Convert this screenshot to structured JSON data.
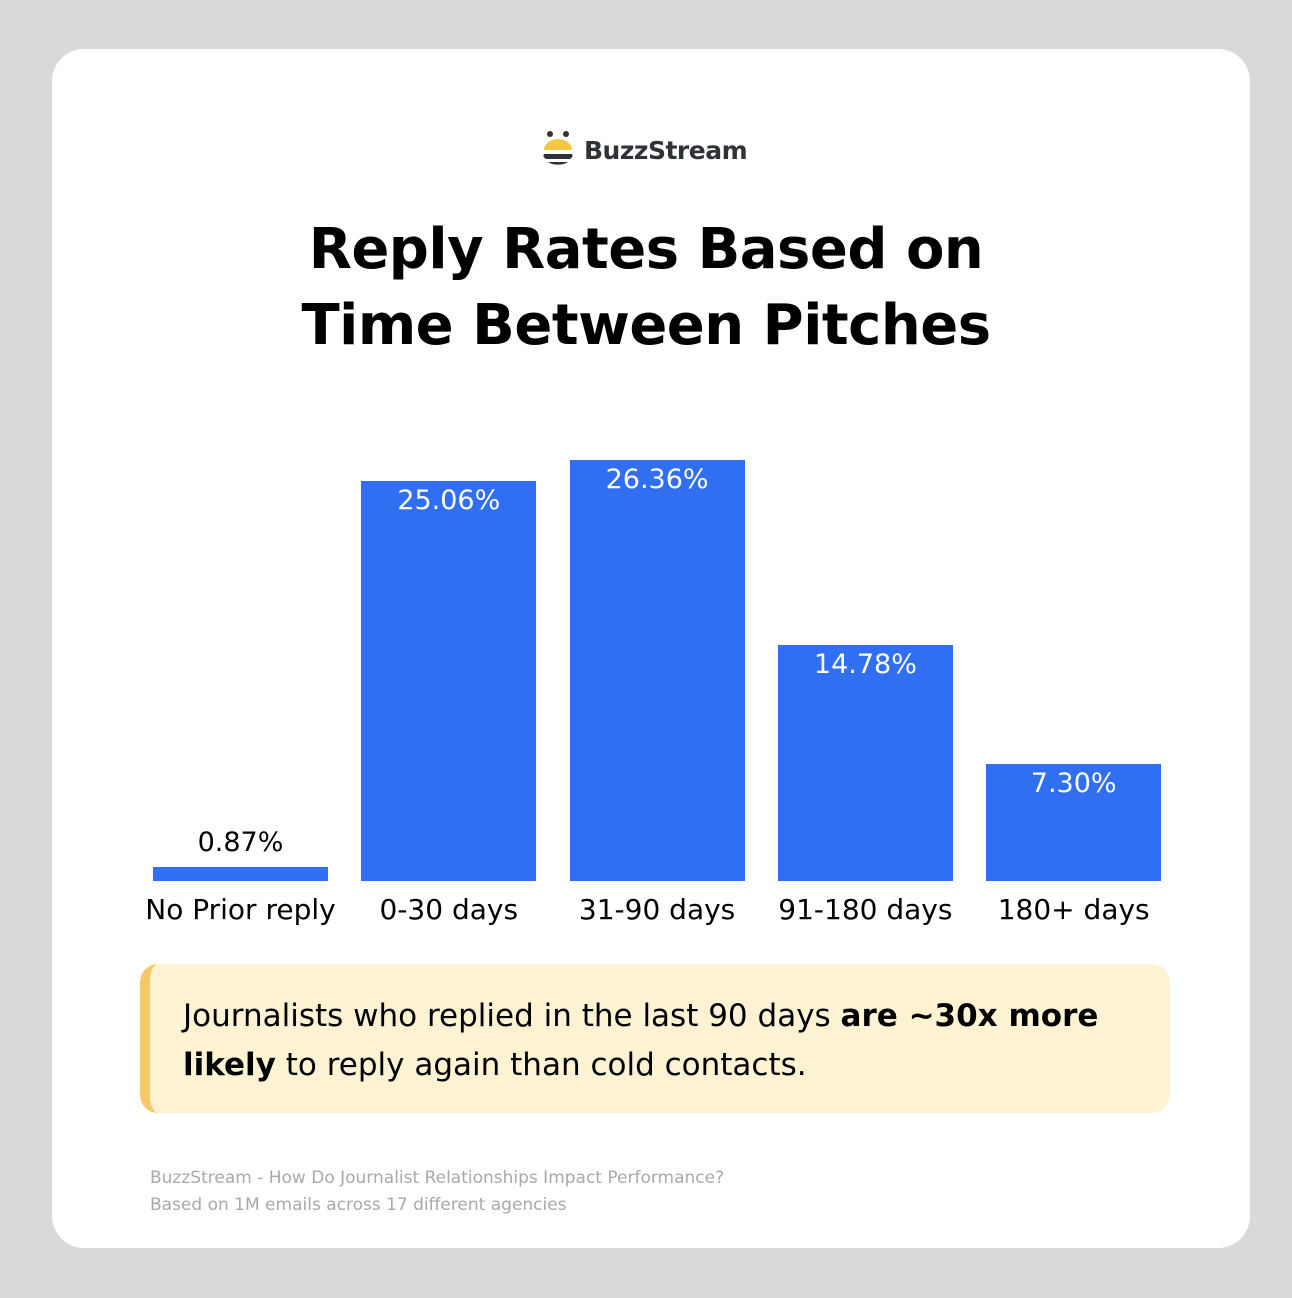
{
  "brand": {
    "name": "BuzzStream",
    "accent": "#306ff2",
    "logo_yellow": "#f5c843"
  },
  "title_lines": [
    "Reply Rates Based on",
    "Time Between Pitches"
  ],
  "chart_data": {
    "type": "bar",
    "title": "Reply Rates Based on Time Between Pitches",
    "categories": [
      "No Prior reply",
      "0-30 days",
      "31-90 days",
      "91-180 days",
      "180+ days"
    ],
    "values": [
      0.87,
      25.06,
      26.36,
      14.78,
      7.3
    ],
    "labels": [
      "0.87%",
      "25.06%",
      "26.36%",
      "14.78%",
      "7.30%"
    ],
    "unit": "%",
    "bar_color": "#306ff2",
    "grid": false,
    "legend": "none"
  },
  "callout": {
    "text_1": "Journalists who replied in the last 90 days ",
    "bold_1": "are ~30x more likely",
    "text_2": " to reply again than cold contacts.",
    "bold_1a": "are ~30x more",
    "bold_1b": "likely"
  },
  "footer": {
    "line1": "BuzzStream - How Do Journalist Relationships Impact Performance?",
    "line2": "Based on 1M emails across 17 different agencies"
  }
}
